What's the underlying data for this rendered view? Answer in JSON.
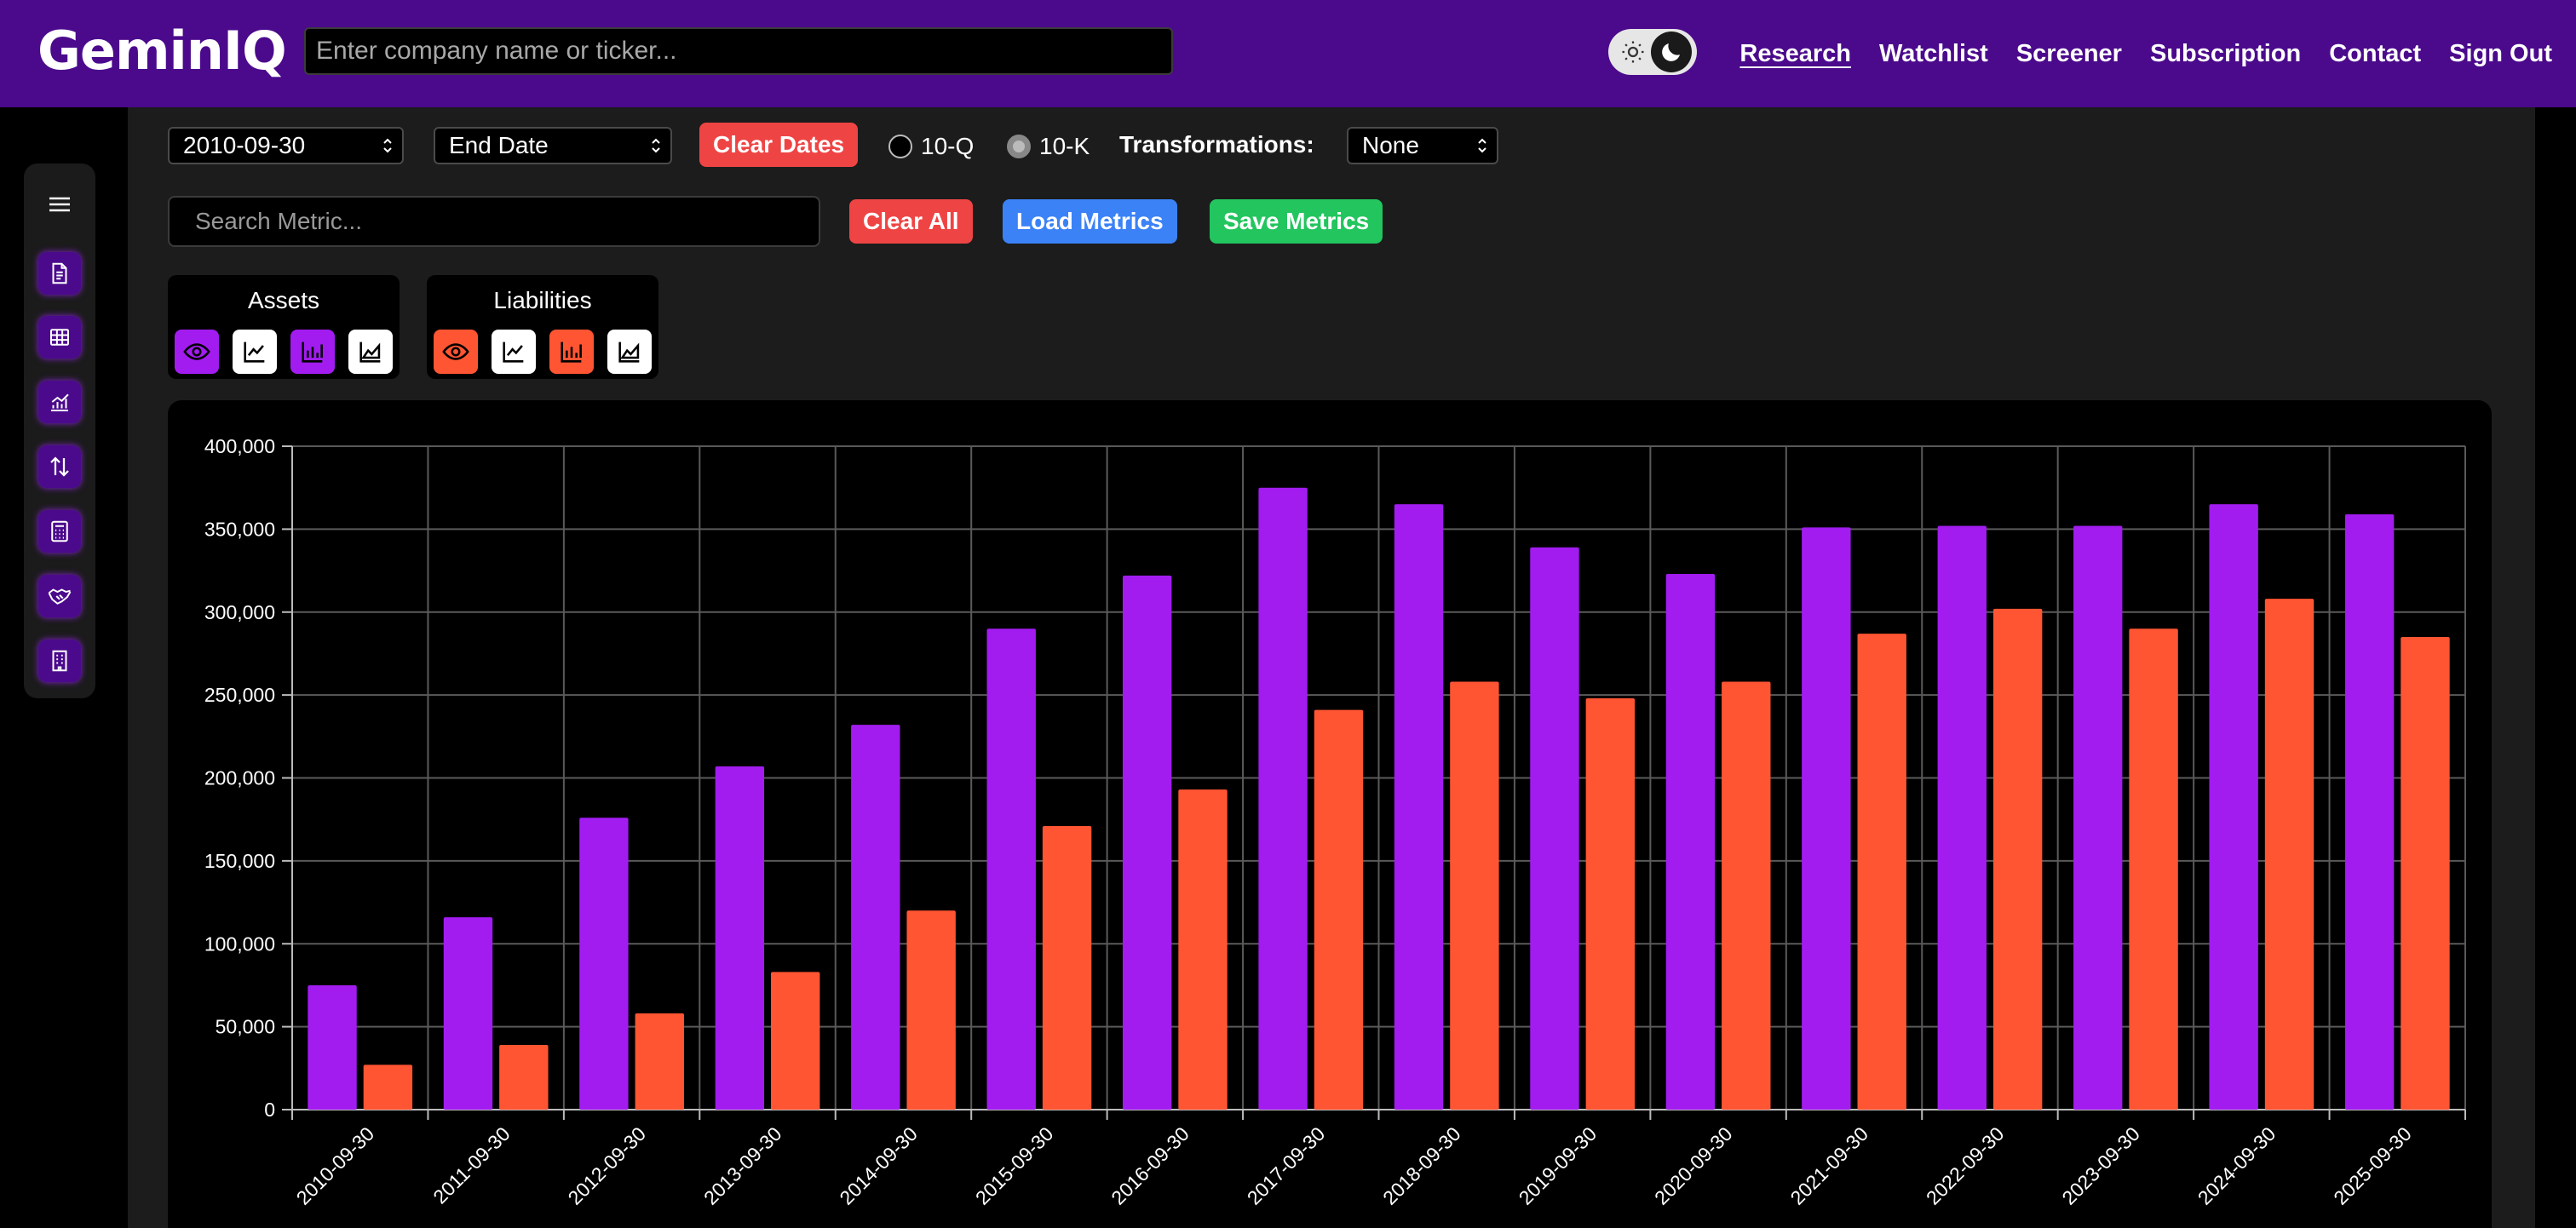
{
  "header": {
    "logo": "GeminIQ",
    "search_placeholder": "Enter company name or ticker...",
    "nav": [
      "Research",
      "Watchlist",
      "Screener",
      "Subscription",
      "Contact",
      "Sign Out"
    ],
    "active_nav": "Research"
  },
  "sidebar": {
    "icons": [
      "document-icon",
      "table-icon",
      "chart-line-icon",
      "arrows-updown-icon",
      "calculator-icon",
      "handshake-icon",
      "building-icon"
    ]
  },
  "controls": {
    "start_date": "2010-09-30",
    "end_date": "End Date",
    "clear_dates": "Clear Dates",
    "radio_10q": "10-Q",
    "radio_10k": "10-K",
    "selected_filing": "10-K",
    "transformations_label": "Transformations:",
    "transformations_value": "None",
    "metric_search_placeholder": "Search Metric...",
    "clear_all": "Clear All",
    "load_metrics": "Load Metrics",
    "save_metrics": "Save Metrics"
  },
  "series_groups": [
    {
      "name": "Assets",
      "color": "#a21cf0"
    },
    {
      "name": "Liabilities",
      "color": "#ff5533"
    }
  ],
  "chart_data": {
    "type": "bar",
    "categories": [
      "2010-09-30",
      "2011-09-30",
      "2012-09-30",
      "2013-09-30",
      "2014-09-30",
      "2015-09-30",
      "2016-09-30",
      "2017-09-30",
      "2018-09-30",
      "2019-09-30",
      "2020-09-30",
      "2021-09-30",
      "2022-09-30",
      "2023-09-30",
      "2024-09-30",
      "2025-09-30"
    ],
    "series": [
      {
        "name": "Assets",
        "color": "#a21cf0",
        "values": [
          75000,
          116000,
          176000,
          207000,
          232000,
          290000,
          322000,
          375000,
          365000,
          339000,
          323000,
          351000,
          352000,
          352000,
          365000,
          359000
        ]
      },
      {
        "name": "Liabilities",
        "color": "#ff5533",
        "values": [
          27000,
          39000,
          58000,
          83000,
          120000,
          171000,
          193000,
          241000,
          258000,
          248000,
          258000,
          287000,
          302000,
          290000,
          308000,
          285000
        ]
      }
    ],
    "ylim": [
      0,
      400000
    ],
    "yticks": [
      "0",
      "50,000",
      "100,000",
      "150,000",
      "200,000",
      "250,000",
      "300,000",
      "350,000",
      "400,000"
    ],
    "grid": true
  }
}
